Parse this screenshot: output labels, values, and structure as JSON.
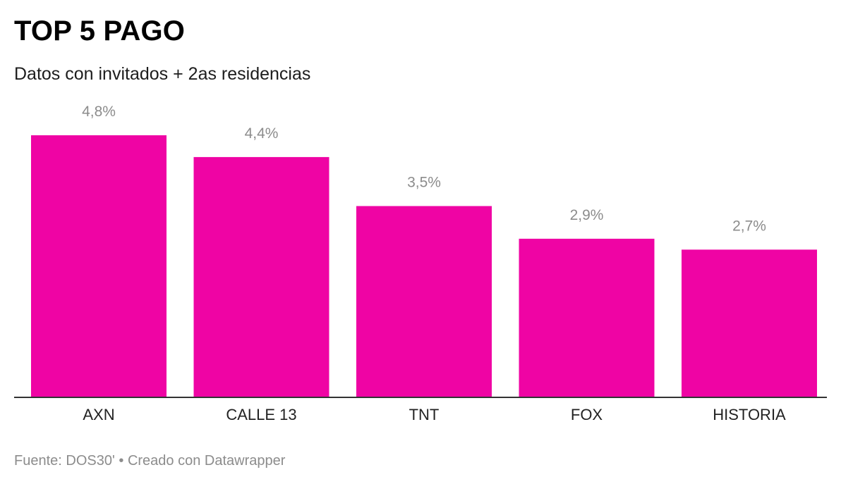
{
  "chart_data": {
    "type": "bar",
    "title": "TOP 5 PAGO",
    "subtitle": "Datos con invitados + 2as residencias",
    "categories": [
      "AXN",
      "CALLE 13",
      "TNT",
      "FOX",
      "HISTORIA"
    ],
    "values": [
      4.8,
      4.4,
      3.5,
      2.9,
      2.7
    ],
    "value_labels": [
      "4,8%",
      "4,4%",
      "3,5%",
      "2,9%",
      "2,7%"
    ],
    "xlabel": "",
    "ylabel": "",
    "ylim": [
      0,
      4.8
    ],
    "grid": false,
    "legend": "none",
    "bar_color": "#ef04a4"
  },
  "footer": {
    "source": "Fuente: DOS30'",
    "separator": "•",
    "credit": "Creado con Datawrapper"
  },
  "colors": {
    "bar": "#ef04a4",
    "value_label": "#8c8c8c",
    "category_label": "#222222",
    "baseline": "#333333"
  }
}
